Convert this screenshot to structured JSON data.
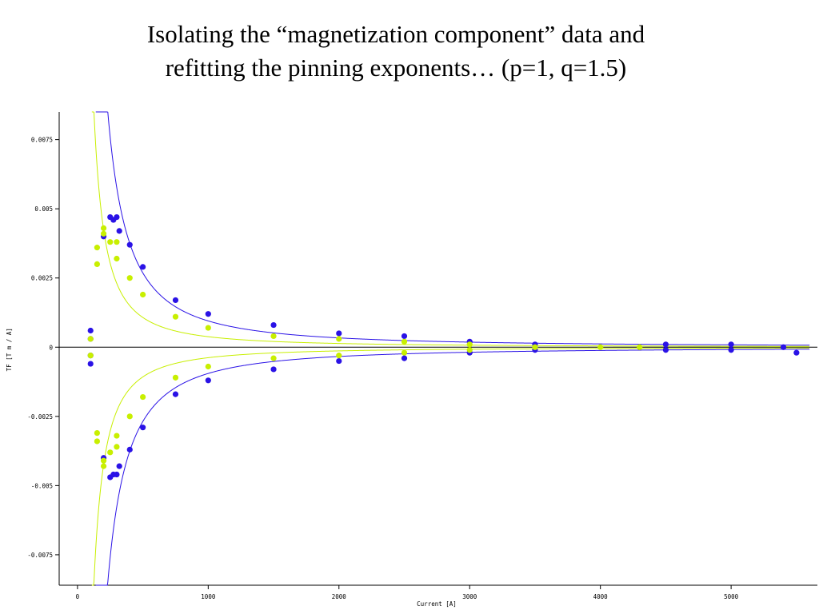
{
  "slide": {
    "title_line1": "Isolating the “magnetization component” data and",
    "title_line2": "refitting the pinning exponents… (p=1, q=1.5)"
  },
  "chart_data": {
    "type": "scatter",
    "title": "",
    "xlabel": "Current [A]",
    "ylabel": "TF [T m / A]",
    "xlim": [
      -140,
      5660
    ],
    "ylim": [
      -0.0086,
      0.0085
    ],
    "x_ticks": [
      0,
      1000,
      2000,
      3000,
      4000,
      5000
    ],
    "x_tick_labels": [
      "0",
      "1000",
      "2000",
      "3000",
      "4000",
      "5000"
    ],
    "y_ticks": [
      0.0075,
      0.005,
      0.0025,
      0,
      -0.0025,
      -0.005,
      -0.0075
    ],
    "y_tick_labels": [
      "0.0075",
      "0.005",
      "0.0025",
      "0",
      "-0.0025",
      "-0.005",
      "-0.0075"
    ],
    "grid": false,
    "colors": {
      "blue": "#2a12e6",
      "yellow": "#c8ef00",
      "axis": "#000000"
    },
    "series": [
      {
        "color": "#2a12e6",
        "points": [
          [
            100,
            0.0006
          ],
          [
            100,
            0.0003
          ],
          [
            100,
            -0.0003
          ],
          [
            100,
            -0.0006
          ],
          [
            200,
            0.004
          ],
          [
            200,
            -0.004
          ],
          [
            250,
            0.0047
          ],
          [
            250,
            -0.0047
          ],
          [
            275,
            0.0046
          ],
          [
            275,
            -0.0046
          ],
          [
            300,
            0.0047
          ],
          [
            300,
            -0.0046
          ],
          [
            320,
            0.0042
          ],
          [
            320,
            -0.0043
          ],
          [
            400,
            0.0037
          ],
          [
            400,
            -0.0037
          ],
          [
            500,
            0.0029
          ],
          [
            500,
            -0.0029
          ],
          [
            750,
            0.0017
          ],
          [
            750,
            -0.0017
          ],
          [
            1000,
            0.0012
          ],
          [
            1000,
            -0.0012
          ],
          [
            1500,
            0.0008
          ],
          [
            1500,
            -0.0008
          ],
          [
            2000,
            0.0005
          ],
          [
            2000,
            -0.0005
          ],
          [
            2500,
            0.0004
          ],
          [
            2500,
            -0.0004
          ],
          [
            3000,
            0.0002
          ],
          [
            3000,
            -0.0002
          ],
          [
            3500,
            0.0001
          ],
          [
            3500,
            -0.0001
          ],
          [
            4500,
            0.0001
          ],
          [
            4500,
            -0.0001
          ],
          [
            5000,
            0.0001
          ],
          [
            5000,
            -0.0001
          ],
          [
            5400,
            0.0
          ],
          [
            5500,
            -0.0002
          ]
        ]
      },
      {
        "color": "#c8ef00",
        "points": [
          [
            100,
            0.0003
          ],
          [
            100,
            -0.0003
          ],
          [
            150,
            0.0036
          ],
          [
            150,
            0.003
          ],
          [
            150,
            -0.0031
          ],
          [
            150,
            -0.0034
          ],
          [
            200,
            0.0043
          ],
          [
            200,
            0.0041
          ],
          [
            200,
            -0.0041
          ],
          [
            200,
            -0.0043
          ],
          [
            250,
            0.0038
          ],
          [
            250,
            -0.0038
          ],
          [
            300,
            0.0038
          ],
          [
            300,
            0.0032
          ],
          [
            300,
            -0.0032
          ],
          [
            300,
            -0.0036
          ],
          [
            400,
            0.0025
          ],
          [
            400,
            -0.0025
          ],
          [
            500,
            0.0019
          ],
          [
            500,
            -0.0018
          ],
          [
            750,
            0.0011
          ],
          [
            750,
            -0.0011
          ],
          [
            1000,
            0.0007
          ],
          [
            1000,
            -0.0007
          ],
          [
            1500,
            0.0004
          ],
          [
            1500,
            -0.0004
          ],
          [
            2000,
            0.0003
          ],
          [
            2000,
            -0.0003
          ],
          [
            2500,
            0.0002
          ],
          [
            2500,
            -0.0002
          ],
          [
            3000,
            0.0001
          ],
          [
            3000,
            -0.0001
          ],
          [
            3500,
            0.0
          ],
          [
            4000,
            0.0
          ],
          [
            4300,
            0.0
          ]
        ]
      }
    ],
    "fits": [
      {
        "color": "#2a12e6",
        "form": "±A·x^-1.5",
        "A": 30.0,
        "x_start": 140,
        "x_end": 5600
      },
      {
        "color": "#c8ef00",
        "form": "±A·x^-1.5",
        "A": 12.0,
        "x_start": 110,
        "x_end": 5600
      }
    ]
  }
}
